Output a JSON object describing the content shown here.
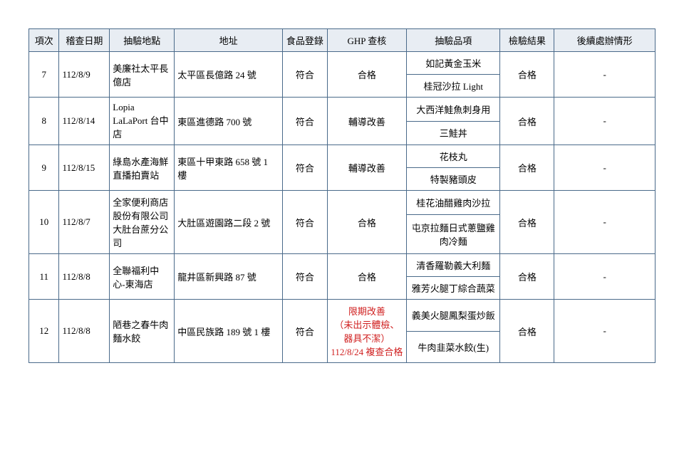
{
  "table": {
    "header_bg": "#e8edf3",
    "border_color": "#4a6a8a",
    "text_color": "#000000",
    "red_color": "#d02020",
    "columns": [
      "項次",
      "稽查日期",
      "抽驗地點",
      "地址",
      "食品登錄",
      "GHP 查核",
      "抽驗品項",
      "檢驗結果",
      "後續處辦情形"
    ],
    "rows": [
      {
        "no": "7",
        "date": "112/8/9",
        "place": "美廉社太平長億店",
        "addr": "太平區長億路 24 號",
        "reg": "符合",
        "ghp": "合格",
        "ghp_red": false,
        "items": [
          "如記黃金玉米",
          "桂冠沙拉 Light"
        ],
        "result": "合格",
        "follow": "-"
      },
      {
        "no": "8",
        "date": "112/8/14",
        "place": "Lopia LaLaPort 台中店",
        "addr": "東區進德路 700 號",
        "reg": "符合",
        "ghp": "輔導改善",
        "ghp_red": false,
        "items": [
          "大西洋鮭魚刺身用",
          "三鮭丼"
        ],
        "result": "合格",
        "follow": "-"
      },
      {
        "no": "9",
        "date": "112/8/15",
        "place": "綠島水產海鮮直播拍賣站",
        "addr": "東區十甲東路 658 號 1 樓",
        "reg": "符合",
        "ghp": "輔導改善",
        "ghp_red": false,
        "items": [
          "花枝丸",
          "特製豬頭皮"
        ],
        "result": "合格",
        "follow": "-"
      },
      {
        "no": "10",
        "date": "112/8/7",
        "place": "全家便利商店股份有限公司大肚台蔗分公司",
        "addr": "大肚區遊園路二段 2 號",
        "reg": "符合",
        "ghp": "合格",
        "ghp_red": false,
        "items": [
          "桂花油醋雞肉沙拉",
          "屯京拉麵日式蔥鹽雞肉冷麵"
        ],
        "result": "合格",
        "follow": "-"
      },
      {
        "no": "11",
        "date": "112/8/8",
        "place": "全聯福利中心-東海店",
        "addr": "龍井區新興路 87 號",
        "reg": "符合",
        "ghp": "合格",
        "ghp_red": false,
        "items": [
          "清香羅勒義大利麵",
          "雅芳火腿丁綜合蔬菜"
        ],
        "result": "合格",
        "follow": "-"
      },
      {
        "no": "12",
        "date": "112/8/8",
        "place": "陋巷之春牛肉麵水餃",
        "addr": "中區民族路 189 號 1 樓",
        "reg": "符合",
        "ghp": "限期改善\n（未出示體檢、器具不潔）\n112/8/24 複查合格",
        "ghp_red": true,
        "items": [
          "義美火腿鳳梨蛋炒飯",
          "牛肉韭菜水餃(生)"
        ],
        "result": "合格",
        "follow": "-"
      }
    ]
  }
}
